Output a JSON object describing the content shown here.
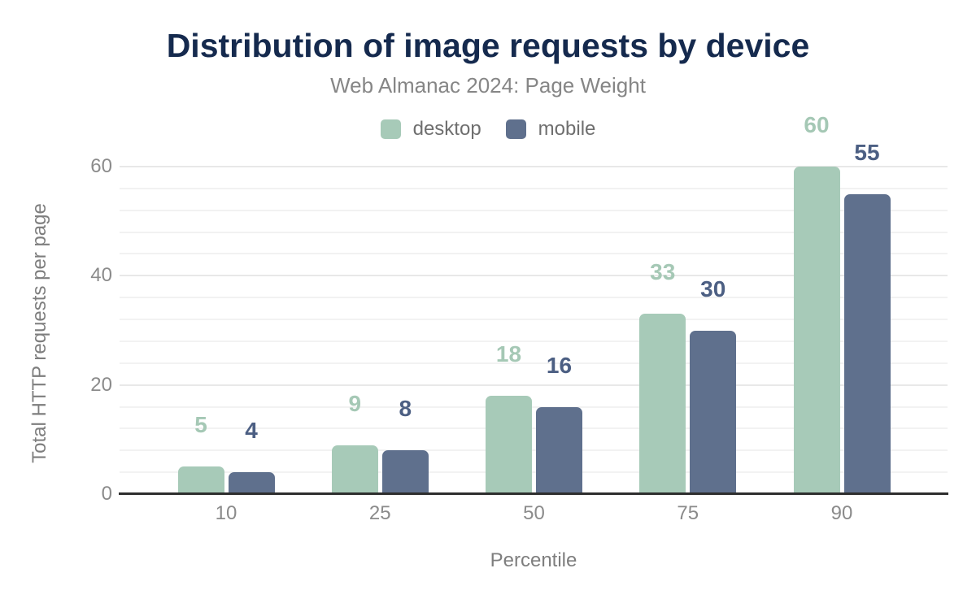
{
  "header": {
    "title": "Distribution of image requests by device",
    "subtitle": "Web Almanac 2024: Page Weight"
  },
  "chart_data": {
    "type": "bar",
    "title": "Distribution of image requests by device",
    "subtitle": "Web Almanac 2024: Page Weight",
    "categories": [
      "10",
      "25",
      "50",
      "75",
      "90"
    ],
    "series": [
      {
        "name": "desktop",
        "values": [
          5,
          9,
          18,
          33,
          60
        ],
        "color": "#a7cab8",
        "label_color": "#a5c8b5"
      },
      {
        "name": "mobile",
        "values": [
          4,
          8,
          16,
          30,
          55
        ],
        "color": "#5f708d",
        "label_color": "#4c5f83"
      }
    ],
    "xlabel": "Percentile",
    "ylabel": "Total HTTP requests per page",
    "yticks": [
      0,
      20,
      40,
      60
    ],
    "ylim": [
      0,
      60
    ],
    "grid": {
      "orientation": "horizontal",
      "minor_step": 4,
      "major_step": 20
    },
    "legend_position": "top",
    "bar_value_labels": true
  },
  "theme": {
    "background": "#ffffff",
    "title_color": "#152a4e",
    "subtitle_color": "#868686",
    "legend_text_color": "#6f6f6f",
    "axis_title_color": "#7e7e7e",
    "tick_label_color": "#8b8b8b",
    "axis_line_color": "#2e2e2e",
    "gridline_minor_color": "#f2f2f2",
    "gridline_major_color": "#e8e8e8",
    "desktop_color": "#a7cab8",
    "mobile_color": "#5f708d"
  }
}
